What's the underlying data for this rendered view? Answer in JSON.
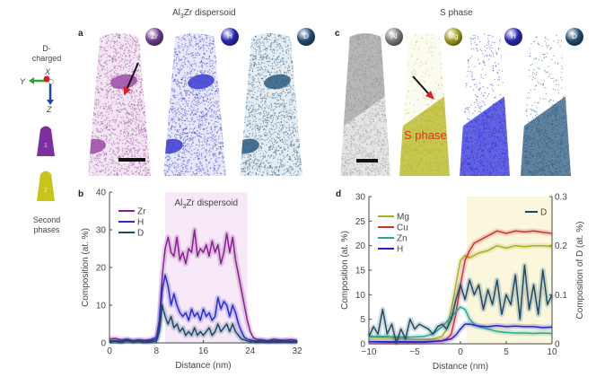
{
  "figure": {
    "title_left": "Al3Zr dispersoid",
    "title_left_sub": "3",
    "title_right": "S phase",
    "panel_a": "a",
    "panel_b": "b",
    "panel_c": "c",
    "panel_d": "d"
  },
  "legend_side": {
    "d_charged": "D-\ncharged",
    "axis_x": "X",
    "axis_y": "Y",
    "axis_z": "Z",
    "tip1_label": "1",
    "tip2_label": "2",
    "second_phases": "Second\nphases",
    "tip1_color": "#7b2fa0",
    "tip2_color": "#c9c41a"
  },
  "tips_a": [
    {
      "element": "Zr",
      "color": "#9a4aa3",
      "ball": "#6b3a8a"
    },
    {
      "element": "H",
      "color": "#3a3ad0",
      "ball": "#2626b0"
    },
    {
      "element": "D",
      "color": "#2c5a80",
      "ball": "#1f4a6e"
    }
  ],
  "tips_c": [
    {
      "element": "Al",
      "color": "#9a9a9a",
      "ball": "#7a7a7a"
    },
    {
      "element": "Mg",
      "color": "#b5b520",
      "ball": "#9d9a1a"
    },
    {
      "element": "H",
      "color": "#2020d0",
      "ball": "#2626b0"
    },
    {
      "element": "D",
      "color": "#1f4f70",
      "ball": "#1f4a6e"
    }
  ],
  "annotation_s_phase": "S phase",
  "chart_data": [
    {
      "type": "line",
      "id": "b",
      "title": "",
      "annotation": "Al3Zr dispersoid",
      "annotation_sub": "3",
      "xlabel": "Distance (nm)",
      "ylabel": "Composition (at. %)",
      "xlim": [
        0,
        32
      ],
      "ylim": [
        0,
        40
      ],
      "xticks": [
        0,
        8,
        16,
        24,
        32
      ],
      "yticks": [
        0,
        10,
        20,
        30,
        40
      ],
      "shaded_region": [
        9.5,
        23.5
      ],
      "shaded_color": "#f6e8f6",
      "legend": "top-left",
      "series": [
        {
          "name": "Zr",
          "color": "#8a1f8f",
          "x": [
            0,
            1,
            2,
            3,
            4,
            5,
            6,
            7,
            8,
            8.5,
            9,
            9.5,
            10,
            10.5,
            11,
            11.5,
            12,
            12.5,
            13,
            13.5,
            14,
            14.5,
            15,
            15.5,
            16,
            16.5,
            17,
            17.5,
            18,
            18.5,
            19,
            19.5,
            20,
            20.5,
            21,
            21.5,
            22,
            22.5,
            23,
            23.5,
            24,
            24.5,
            25,
            26,
            27,
            28,
            29,
            30,
            31,
            32
          ],
          "y": [
            1,
            1.2,
            0.8,
            1,
            0.6,
            0.8,
            0.7,
            0.9,
            1.5,
            6,
            18,
            25,
            28,
            24,
            23,
            28,
            22,
            24,
            21,
            25,
            24,
            30,
            23,
            25,
            24,
            26,
            23,
            27,
            24,
            26,
            21,
            24,
            29,
            24,
            28,
            22,
            18,
            14,
            10,
            6,
            3,
            1.5,
            1,
            0.8,
            0.6,
            1,
            0.8,
            0.7,
            0.9,
            0.6
          ]
        },
        {
          "name": "H",
          "color": "#2a2ad0",
          "x": [
            0,
            1,
            2,
            3,
            4,
            5,
            6,
            7,
            8,
            8.5,
            9,
            9.5,
            10,
            10.5,
            11,
            11.5,
            12,
            12.5,
            13,
            13.5,
            14,
            14.5,
            15,
            15.5,
            16,
            16.5,
            17,
            17.5,
            18,
            18.5,
            19,
            19.5,
            20,
            20.5,
            21,
            21.5,
            22,
            22.5,
            23,
            23.5,
            24,
            24.5,
            25,
            26,
            27,
            28,
            29,
            30,
            31,
            32
          ],
          "y": [
            0.5,
            0.6,
            0.4,
            0.8,
            0.5,
            0.7,
            0.4,
            0.6,
            1,
            5,
            14,
            18,
            15,
            10,
            13,
            10,
            8,
            7,
            8,
            6,
            9,
            7,
            8,
            6,
            9,
            7,
            8,
            6,
            7,
            12,
            9,
            11,
            10,
            7,
            10,
            8,
            5,
            3,
            1.5,
            1,
            0.8,
            0.6,
            0.5,
            0.7,
            0.4,
            0.6,
            0.5,
            0.7,
            0.4,
            0.5
          ]
        },
        {
          "name": "D",
          "color": "#1d4a66",
          "x": [
            0,
            1,
            2,
            3,
            4,
            5,
            6,
            7,
            8,
            8.5,
            9,
            9.5,
            10,
            10.5,
            11,
            11.5,
            12,
            12.5,
            13,
            13.5,
            14,
            14.5,
            15,
            15.5,
            16,
            16.5,
            17,
            17.5,
            18,
            18.5,
            19,
            19.5,
            20,
            20.5,
            21,
            21.5,
            22,
            22.5,
            23,
            23.5,
            24,
            24.5,
            25,
            26,
            27,
            28,
            29,
            30,
            31,
            32
          ],
          "y": [
            0.3,
            0.4,
            0.2,
            0.5,
            0.3,
            0.4,
            0.2,
            0.3,
            0.5,
            3,
            10,
            7,
            5,
            7,
            4,
            5,
            3,
            4,
            2,
            3,
            2,
            4,
            2,
            3,
            2,
            3,
            4,
            2,
            3,
            5,
            3,
            4,
            5,
            3,
            5,
            3,
            2,
            1,
            0.8,
            0.5,
            0.3,
            0.4,
            0.2,
            0.3,
            0.2,
            0.3,
            0.2,
            0.3,
            0.2,
            0.3
          ]
        }
      ]
    },
    {
      "type": "line",
      "id": "d",
      "title": "",
      "xlabel": "Distance (nm)",
      "ylabel": "Composition (at. %)",
      "ylabel_right": "Composition of D (at. %)",
      "xlim": [
        -10,
        10
      ],
      "ylim": [
        0,
        30
      ],
      "ylim_right": [
        0,
        0.3
      ],
      "xticks": [
        -10,
        -5,
        0,
        5,
        10
      ],
      "yticks": [
        0,
        5,
        10,
        15,
        20,
        25,
        30
      ],
      "yticks_right": [
        0,
        0.1,
        0.2,
        0.3
      ],
      "shaded_region": [
        0.7,
        10
      ],
      "shaded_color": "#fbf7dc",
      "legend": "top-left",
      "legend_right": "top-right",
      "series": [
        {
          "name": "Mg",
          "axis": "left",
          "color": "#a9b020",
          "x": [
            -10,
            -8,
            -6,
            -4,
            -3,
            -2,
            -1.5,
            -1,
            -0.5,
            0,
            0.5,
            1,
            1.5,
            2,
            3,
            4,
            5,
            6,
            7,
            8,
            9,
            10
          ],
          "y": [
            1.3,
            1.2,
            1,
            0.9,
            1,
            1.5,
            3,
            7,
            12,
            17,
            18,
            17.5,
            18,
            18.5,
            19,
            20,
            19.5,
            20,
            19.8,
            20,
            20,
            19.8
          ]
        },
        {
          "name": "Cu",
          "axis": "left",
          "color": "#d23030",
          "x": [
            -10,
            -8,
            -6,
            -4,
            -3,
            -2,
            -1.5,
            -1,
            -0.5,
            0,
            0.5,
            1,
            1.5,
            2,
            3,
            4,
            5,
            6,
            7,
            8,
            9,
            10
          ],
          "y": [
            0.4,
            0.3,
            0.3,
            0.3,
            0.4,
            0.6,
            1,
            2,
            6,
            12,
            17,
            19,
            20.5,
            21,
            22,
            23,
            22.5,
            23,
            22.8,
            23,
            22.7,
            22.5
          ]
        },
        {
          "name": "Zn",
          "axis": "left",
          "color": "#26a89a",
          "x": [
            -10,
            -8,
            -6,
            -4,
            -3,
            -2,
            -1.5,
            -1,
            -0.5,
            0,
            0.5,
            1,
            1.5,
            2,
            3,
            4,
            5,
            6,
            7,
            8,
            9,
            10
          ],
          "y": [
            1.5,
            1.5,
            1.3,
            1.5,
            2,
            3.5,
            4.5,
            5.5,
            6.5,
            7.5,
            7,
            5,
            4,
            3.5,
            3,
            2.5,
            2.3,
            2.2,
            2.2,
            2.1,
            2.2,
            2.1
          ]
        },
        {
          "name": "H",
          "axis": "left",
          "color": "#2020d0",
          "x": [
            -10,
            -8,
            -6,
            -4,
            -3,
            -2,
            -1.5,
            -1,
            -0.5,
            0,
            0.5,
            1,
            1.5,
            2,
            3,
            4,
            5,
            6,
            7,
            8,
            9,
            10
          ],
          "y": [
            0.4,
            0.4,
            0.4,
            0.4,
            0.5,
            0.6,
            0.8,
            1,
            1.8,
            3,
            4,
            4,
            3.8,
            3.6,
            3.5,
            3.7,
            3.5,
            3.6,
            3.5,
            3.5,
            3.3,
            3.4
          ]
        },
        {
          "name": "D",
          "axis": "right",
          "color": "#1d4a66",
          "x": [
            -10,
            -9.5,
            -9,
            -8.5,
            -8,
            -7.5,
            -7,
            -6.5,
            -6,
            -5.5,
            -5,
            -4.5,
            -4,
            -3.5,
            -3,
            -2.5,
            -2,
            -1.5,
            -1,
            -0.5,
            0,
            0.5,
            1,
            1.5,
            2,
            2.5,
            3,
            3.5,
            4,
            4.5,
            5,
            5.5,
            6,
            6.5,
            7,
            7.5,
            8,
            8.5,
            9,
            9.5,
            10
          ],
          "y": [
            0.015,
            0.035,
            0.02,
            0.07,
            0.02,
            0.04,
            0.002,
            0.03,
            0.01,
            0.05,
            0.03,
            0.04,
            0.035,
            0.03,
            0.02,
            0.035,
            0.04,
            0.03,
            0.05,
            0.09,
            0.12,
            0.09,
            0.13,
            0.1,
            0.12,
            0.07,
            0.11,
            0.08,
            0.13,
            0.06,
            0.1,
            0.08,
            0.14,
            0.05,
            0.16,
            0.07,
            0.12,
            0.06,
            0.15,
            0.08,
            0.1
          ]
        }
      ]
    }
  ]
}
